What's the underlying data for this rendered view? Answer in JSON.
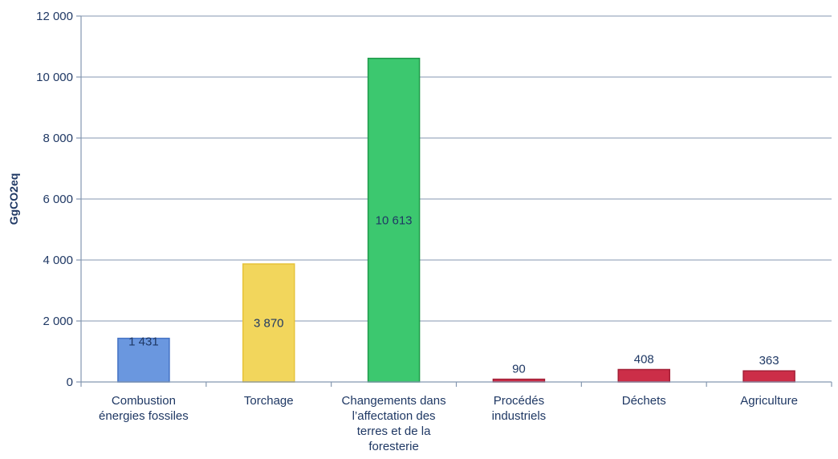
{
  "chart_data": {
    "type": "bar",
    "ylabel": "GgCO2eq",
    "xlabel": "",
    "ylim": [
      0,
      12000
    ],
    "yticks": [
      0,
      2000,
      4000,
      6000,
      8000,
      10000,
      12000
    ],
    "ytick_labels": [
      "0",
      "2 000",
      "4 000",
      "6 000",
      "8 000",
      "10 000",
      "12 000"
    ],
    "grid": true,
    "categories": [
      [
        "Combustion",
        "énergies fossiles"
      ],
      [
        "Torchage"
      ],
      [
        "Changements dans",
        "l’affectation des",
        "terres et de la",
        "foresterie"
      ],
      [
        "Procédés",
        "industriels"
      ],
      [
        "Déchets"
      ],
      [
        "Agriculture"
      ]
    ],
    "values": [
      1431,
      3870,
      10613,
      90,
      408,
      363
    ],
    "value_labels": [
      "1 431",
      "3 870",
      "10 613",
      "90",
      "408",
      "363"
    ],
    "label_positions": [
      "inside-top",
      "inside-center",
      "inside-center",
      "above",
      "above",
      "above"
    ],
    "colors": [
      {
        "fill": "#6a97df",
        "stroke": "#4472c4"
      },
      {
        "fill": "#f2d65c",
        "stroke": "#e6c33a"
      },
      {
        "fill": "#3cc86f",
        "stroke": "#1f9a4a"
      },
      {
        "fill": "#cc2e48",
        "stroke": "#a31f36"
      },
      {
        "fill": "#cc2e48",
        "stroke": "#a31f36"
      },
      {
        "fill": "#cc2e48",
        "stroke": "#a31f36"
      }
    ]
  }
}
